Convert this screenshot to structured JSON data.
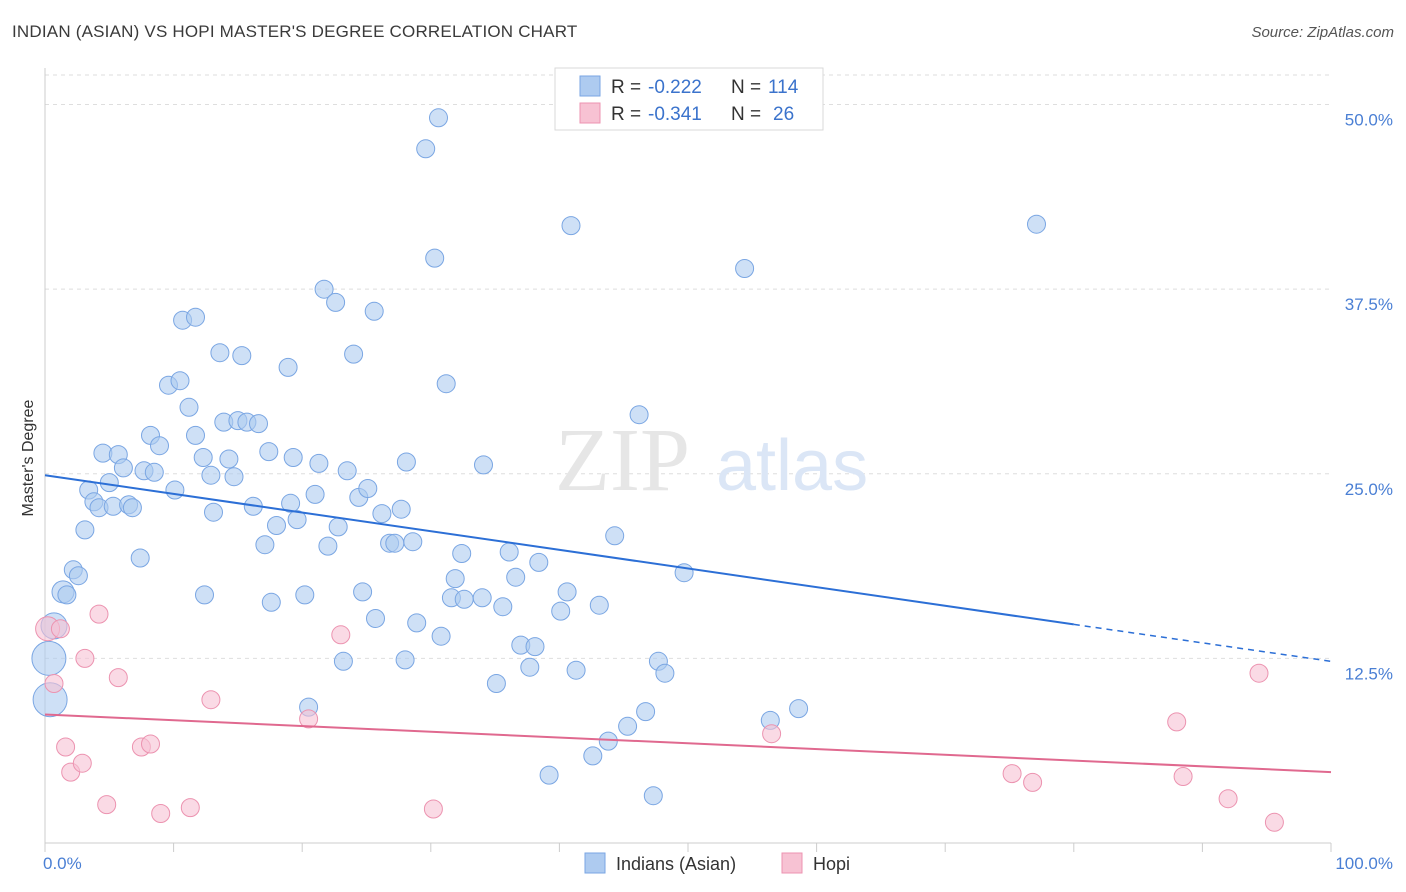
{
  "title": "INDIAN (ASIAN) VS HOPI MASTER'S DEGREE CORRELATION CHART",
  "source": "Source: ZipAtlas.com",
  "watermark": {
    "zip": "ZIP",
    "atlas": "atlas"
  },
  "colors": {
    "blue_fill": "#aecbf0",
    "blue_stroke": "#7aa6e3",
    "blue_line": "#2c6fd6",
    "pink_fill": "#f7c2d3",
    "pink_stroke": "#ec93b0",
    "pink_line": "#e0698f",
    "grid": "#dedede",
    "tick_label": "#4a7fd4"
  },
  "legend": {
    "rows": [
      {
        "r_label": "R =",
        "r_value": "-0.222",
        "n_label": "N =",
        "n_value": "114"
      },
      {
        "r_label": "R =",
        "r_value": "-0.341",
        "n_label": "N =",
        "n_value": "26"
      }
    ]
  },
  "bottom_legend": [
    "Indians (Asian)",
    "Hopi"
  ],
  "chart_data": {
    "type": "scatter",
    "xlabel": "",
    "ylabel": "Master's Degree",
    "xlim": [
      0,
      100
    ],
    "ylim": [
      0,
      52
    ],
    "x_tick_labels": [
      "0.0%",
      "100.0%"
    ],
    "y_ticks": [
      12.5,
      25.0,
      37.5,
      50.0
    ],
    "y_tick_labels": [
      "12.5%",
      "25.0%",
      "37.5%",
      "50.0%"
    ],
    "grid": true,
    "legend_position": "top-center",
    "series": [
      {
        "name": "Indians (Asian)",
        "trend": {
          "x": [
            0,
            80,
            100
          ],
          "y": [
            24.9,
            14.8,
            12.3
          ]
        },
        "points": [
          [
            0.7,
            14.7,
            13
          ],
          [
            0.3,
            12.5,
            17
          ],
          [
            0.4,
            9.7,
            17
          ],
          [
            1.4,
            17.0,
            11
          ],
          [
            1.7,
            16.8,
            9
          ],
          [
            2.2,
            18.5,
            9
          ],
          [
            2.6,
            18.1,
            9
          ],
          [
            3.1,
            21.2,
            9
          ],
          [
            3.4,
            23.9,
            9
          ],
          [
            3.8,
            23.1,
            9
          ],
          [
            4.2,
            22.7,
            9
          ],
          [
            4.5,
            26.4,
            9
          ],
          [
            5.0,
            24.4,
            9
          ],
          [
            5.3,
            22.8,
            9
          ],
          [
            5.7,
            26.3,
            9
          ],
          [
            6.1,
            25.4,
            9
          ],
          [
            6.5,
            22.9,
            9
          ],
          [
            6.8,
            22.7,
            9
          ],
          [
            7.4,
            19.3,
            9
          ],
          [
            7.7,
            25.2,
            9
          ],
          [
            8.2,
            27.6,
            9
          ],
          [
            8.5,
            25.1,
            9
          ],
          [
            8.9,
            26.9,
            9
          ],
          [
            9.6,
            31.0,
            9
          ],
          [
            10.1,
            23.9,
            9
          ],
          [
            10.5,
            31.3,
            9
          ],
          [
            10.7,
            35.4,
            9
          ],
          [
            11.2,
            29.5,
            9
          ],
          [
            11.7,
            27.6,
            9
          ],
          [
            11.7,
            35.6,
            9
          ],
          [
            12.3,
            26.1,
            9
          ],
          [
            12.4,
            16.8,
            9
          ],
          [
            12.9,
            24.9,
            9
          ],
          [
            13.1,
            22.4,
            9
          ],
          [
            13.6,
            33.2,
            9
          ],
          [
            13.9,
            28.5,
            9
          ],
          [
            14.3,
            26.0,
            9
          ],
          [
            14.7,
            24.8,
            9
          ],
          [
            15.0,
            28.6,
            9
          ],
          [
            15.3,
            33.0,
            9
          ],
          [
            15.7,
            28.5,
            9
          ],
          [
            16.2,
            22.8,
            9
          ],
          [
            16.6,
            28.4,
            9
          ],
          [
            17.1,
            20.2,
            9
          ],
          [
            17.4,
            26.5,
            9
          ],
          [
            17.6,
            16.3,
            9
          ],
          [
            18.0,
            21.5,
            9
          ],
          [
            18.9,
            32.2,
            9
          ],
          [
            19.1,
            23.0,
            9
          ],
          [
            19.3,
            26.1,
            9
          ],
          [
            19.6,
            21.9,
            9
          ],
          [
            20.2,
            16.8,
            9
          ],
          [
            20.5,
            9.2,
            9
          ],
          [
            21.0,
            23.6,
            9
          ],
          [
            21.3,
            25.7,
            9
          ],
          [
            21.7,
            37.5,
            9
          ],
          [
            22.0,
            20.1,
            9
          ],
          [
            22.6,
            36.6,
            9
          ],
          [
            22.8,
            21.4,
            9
          ],
          [
            23.2,
            12.3,
            9
          ],
          [
            23.5,
            25.2,
            9
          ],
          [
            24.0,
            33.1,
            9
          ],
          [
            24.4,
            23.4,
            9
          ],
          [
            24.7,
            17.0,
            9
          ],
          [
            25.1,
            24.0,
            9
          ],
          [
            25.6,
            36.0,
            9
          ],
          [
            25.7,
            15.2,
            9
          ],
          [
            26.2,
            22.3,
            9
          ],
          [
            26.8,
            20.3,
            9
          ],
          [
            27.2,
            20.3,
            9
          ],
          [
            27.7,
            22.6,
            9
          ],
          [
            28.0,
            12.4,
            9
          ],
          [
            28.1,
            25.8,
            9
          ],
          [
            28.6,
            20.4,
            9
          ],
          [
            28.9,
            14.9,
            9
          ],
          [
            29.6,
            47.0,
            9
          ],
          [
            30.3,
            39.6,
            9
          ],
          [
            30.6,
            49.1,
            9
          ],
          [
            30.8,
            14.0,
            9
          ],
          [
            31.2,
            31.1,
            9
          ],
          [
            31.6,
            16.6,
            9
          ],
          [
            31.9,
            17.9,
            9
          ],
          [
            32.4,
            19.6,
            9
          ],
          [
            32.6,
            16.5,
            9
          ],
          [
            34.0,
            16.6,
            9
          ],
          [
            34.1,
            25.6,
            9
          ],
          [
            35.1,
            10.8,
            9
          ],
          [
            35.6,
            16.0,
            9
          ],
          [
            36.1,
            19.7,
            9
          ],
          [
            36.6,
            18.0,
            9
          ],
          [
            37.0,
            13.4,
            9
          ],
          [
            37.7,
            11.9,
            9
          ],
          [
            38.1,
            13.3,
            9
          ],
          [
            38.4,
            19.0,
            9
          ],
          [
            39.2,
            4.6,
            9
          ],
          [
            40.1,
            15.7,
            9
          ],
          [
            40.6,
            17.0,
            9
          ],
          [
            40.9,
            41.8,
            9
          ],
          [
            41.3,
            11.7,
            9
          ],
          [
            42.6,
            5.9,
            9
          ],
          [
            43.1,
            16.1,
            9
          ],
          [
            43.8,
            6.9,
            9
          ],
          [
            44.3,
            20.8,
            9
          ],
          [
            45.3,
            7.9,
            9
          ],
          [
            46.2,
            29.0,
            9
          ],
          [
            46.7,
            8.9,
            9
          ],
          [
            47.3,
            3.2,
            9
          ],
          [
            47.7,
            12.3,
            9
          ],
          [
            48.2,
            11.5,
            9
          ],
          [
            49.7,
            18.3,
            9
          ],
          [
            54.4,
            38.9,
            9
          ],
          [
            56.4,
            8.3,
            9
          ],
          [
            58.6,
            9.1,
            9
          ],
          [
            77.1,
            41.9,
            9
          ]
        ]
      },
      {
        "name": "Hopi",
        "trend": {
          "x": [
            0,
            100
          ],
          "y": [
            8.7,
            4.8
          ]
        },
        "points": [
          [
            0.2,
            14.5,
            12
          ],
          [
            0.7,
            10.8,
            9
          ],
          [
            1.2,
            14.5,
            9
          ],
          [
            1.6,
            6.5,
            9
          ],
          [
            2.0,
            4.8,
            9
          ],
          [
            2.9,
            5.4,
            9
          ],
          [
            3.1,
            12.5,
            9
          ],
          [
            4.2,
            15.5,
            9
          ],
          [
            4.8,
            2.6,
            9
          ],
          [
            5.7,
            11.2,
            9
          ],
          [
            7.5,
            6.5,
            9
          ],
          [
            8.2,
            6.7,
            9
          ],
          [
            9.0,
            2.0,
            9
          ],
          [
            11.3,
            2.4,
            9
          ],
          [
            12.9,
            9.7,
            9
          ],
          [
            20.5,
            8.4,
            9
          ],
          [
            23.0,
            14.1,
            9
          ],
          [
            30.2,
            2.3,
            9
          ],
          [
            56.5,
            7.4,
            9
          ],
          [
            75.2,
            4.7,
            9
          ],
          [
            76.8,
            4.1,
            9
          ],
          [
            88.0,
            8.2,
            9
          ],
          [
            88.5,
            4.5,
            9
          ],
          [
            92.0,
            3.0,
            9
          ],
          [
            94.4,
            11.5,
            9
          ],
          [
            95.6,
            1.4,
            9
          ]
        ]
      }
    ]
  }
}
